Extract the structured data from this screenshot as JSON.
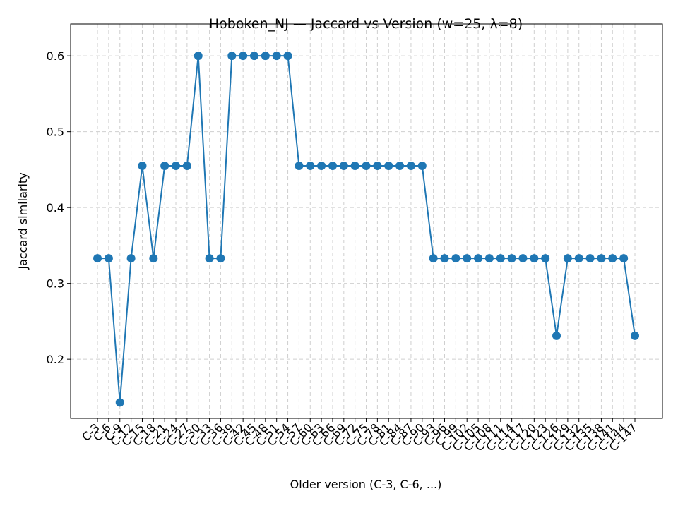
{
  "chart_data": {
    "type": "line",
    "title": "Hoboken_NJ — Jaccard vs Version (w=25, λ=8)",
    "x_label": "Older version (C-3, C-6, ...)",
    "y_label": "Jaccard similarity",
    "categories": [
      "C-3",
      "C-6",
      "C-9",
      "C-12",
      "C-15",
      "C-18",
      "C-21",
      "C-24",
      "C-27",
      "C-30",
      "C-33",
      "C-36",
      "C-39",
      "C-42",
      "C-45",
      "C-48",
      "C-51",
      "C-54",
      "C-57",
      "C-60",
      "C-63",
      "C-66",
      "C-69",
      "C-72",
      "C-75",
      "C-78",
      "C-81",
      "C-84",
      "C-87",
      "C-90",
      "C-93",
      "C-96",
      "C-99",
      "C-102",
      "C-105",
      "C-108",
      "C-111",
      "C-114",
      "C-117",
      "C-120",
      "C-123",
      "C-126",
      "C-129",
      "C-132",
      "C-135",
      "C-138",
      "C-141",
      "C-144",
      "C-147"
    ],
    "series": [
      {
        "name": "Jaccard",
        "color": "#1f77b4",
        "values": [
          0.333,
          0.333,
          0.143,
          0.333,
          0.455,
          0.333,
          0.455,
          0.455,
          0.455,
          0.6,
          0.333,
          0.333,
          0.6,
          0.6,
          0.6,
          0.6,
          0.6,
          0.6,
          0.455,
          0.455,
          0.455,
          0.455,
          0.455,
          0.455,
          0.455,
          0.455,
          0.455,
          0.455,
          0.455,
          0.455,
          0.333,
          0.333,
          0.333,
          0.333,
          0.333,
          0.333,
          0.333,
          0.333,
          0.333,
          0.333,
          0.333,
          0.231,
          0.333,
          0.333,
          0.333,
          0.333,
          0.333,
          0.333,
          0.231
        ]
      }
    ],
    "ylim": [
      0.122,
      0.642
    ],
    "yticks": [
      0.2,
      0.3,
      0.4,
      0.5,
      0.6
    ],
    "grid": true
  }
}
